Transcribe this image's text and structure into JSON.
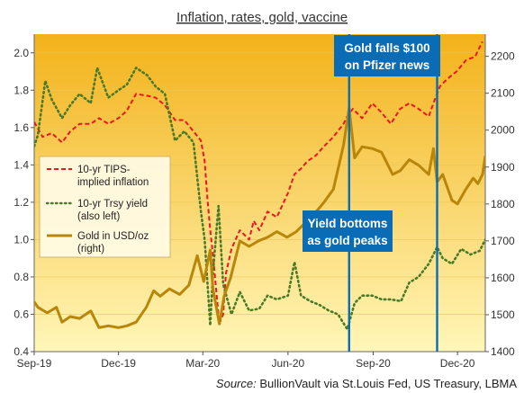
{
  "chart_data": {
    "type": "line",
    "title": "Inflation,  rates, gold, vaccine",
    "source_prefix": "Source:",
    "source_text": " BullionVault via  St.Louis Fed,  US Treasury,  LBMA",
    "x_tick_labels": [
      "Sep-19",
      "Dec-19",
      "Mar-20",
      "Jun-20",
      "Sep-20",
      "Dec-20"
    ],
    "x_tick_dates": [
      "2019-09-01",
      "2019-12-01",
      "2020-03-01",
      "2020-06-01",
      "2020-09-01",
      "2020-12-01"
    ],
    "xlim": [
      "2019-09-01",
      "2020-12-31"
    ],
    "ylim_left": [
      0.4,
      2.1
    ],
    "yticks_left": [
      "0.4",
      "0.6",
      "0.8",
      "1.0",
      "1.2",
      "1.4",
      "1.6",
      "1.8",
      "2.0"
    ],
    "ylim_right": [
      1400,
      2260
    ],
    "yticks_right": [
      "1400",
      "1500",
      "1600",
      "1700",
      "1800",
      "1900",
      "2000",
      "2100",
      "2200"
    ],
    "legend_position": "left-middle",
    "series": [
      {
        "name": "10-yr TIPS-implied inflation",
        "legend_lines": [
          "10-yr TIPS-",
          "implied inflation"
        ],
        "axis": "left",
        "style": "dashed",
        "color": "#e8181e",
        "points": [
          [
            "2019-09-01",
            1.63
          ],
          [
            "2019-09-10",
            1.55
          ],
          [
            "2019-09-20",
            1.57
          ],
          [
            "2019-10-01",
            1.52
          ],
          [
            "2019-10-10",
            1.58
          ],
          [
            "2019-10-20",
            1.62
          ],
          [
            "2019-11-01",
            1.62
          ],
          [
            "2019-11-10",
            1.65
          ],
          [
            "2019-11-20",
            1.62
          ],
          [
            "2019-12-01",
            1.65
          ],
          [
            "2019-12-10",
            1.69
          ],
          [
            "2019-12-20",
            1.78
          ],
          [
            "2020-01-01",
            1.77
          ],
          [
            "2020-01-10",
            1.76
          ],
          [
            "2020-01-20",
            1.72
          ],
          [
            "2020-01-31",
            1.64
          ],
          [
            "2020-02-10",
            1.64
          ],
          [
            "2020-02-20",
            1.58
          ],
          [
            "2020-02-28",
            1.53
          ],
          [
            "2020-03-03",
            1.42
          ],
          [
            "2020-03-06",
            1.22
          ],
          [
            "2020-03-09",
            1.05
          ],
          [
            "2020-03-12",
            0.92
          ],
          [
            "2020-03-16",
            0.7
          ],
          [
            "2020-03-19",
            0.55
          ],
          [
            "2020-03-23",
            0.6
          ],
          [
            "2020-03-26",
            0.82
          ],
          [
            "2020-04-01",
            0.95
          ],
          [
            "2020-04-10",
            1.05
          ],
          [
            "2020-04-20",
            1.0
          ],
          [
            "2020-04-25",
            1.1
          ],
          [
            "2020-05-01",
            1.05
          ],
          [
            "2020-05-10",
            1.15
          ],
          [
            "2020-05-20",
            1.12
          ],
          [
            "2020-06-01",
            1.25
          ],
          [
            "2020-06-08",
            1.35
          ],
          [
            "2020-06-15",
            1.38
          ],
          [
            "2020-06-22",
            1.42
          ],
          [
            "2020-07-01",
            1.45
          ],
          [
            "2020-07-10",
            1.5
          ],
          [
            "2020-07-20",
            1.55
          ],
          [
            "2020-07-31",
            1.62
          ],
          [
            "2020-08-05",
            1.67
          ],
          [
            "2020-08-10",
            1.7
          ],
          [
            "2020-08-20",
            1.65
          ],
          [
            "2020-08-31",
            1.73
          ],
          [
            "2020-09-10",
            1.68
          ],
          [
            "2020-09-20",
            1.62
          ],
          [
            "2020-09-30",
            1.7
          ],
          [
            "2020-10-10",
            1.73
          ],
          [
            "2020-10-20",
            1.7
          ],
          [
            "2020-10-31",
            1.66
          ],
          [
            "2020-11-05",
            1.73
          ],
          [
            "2020-11-12",
            1.82
          ],
          [
            "2020-11-20",
            1.86
          ],
          [
            "2020-11-30",
            1.9
          ],
          [
            "2020-12-10",
            1.96
          ],
          [
            "2020-12-20",
            1.98
          ],
          [
            "2020-12-28",
            2.06
          ]
        ]
      },
      {
        "name": "10-yr Trsy yield (also left)",
        "legend_lines": [
          "10-yr Trsy yield",
          "(also left)"
        ],
        "axis": "left",
        "style": "dotted",
        "color": "#4a7a28",
        "points": [
          [
            "2019-09-01",
            1.5
          ],
          [
            "2019-09-05",
            1.56
          ],
          [
            "2019-09-13",
            1.85
          ],
          [
            "2019-09-20",
            1.75
          ],
          [
            "2019-10-01",
            1.65
          ],
          [
            "2019-10-10",
            1.72
          ],
          [
            "2019-10-20",
            1.78
          ],
          [
            "2019-11-01",
            1.73
          ],
          [
            "2019-11-08",
            1.92
          ],
          [
            "2019-11-20",
            1.76
          ],
          [
            "2019-12-01",
            1.8
          ],
          [
            "2019-12-10",
            1.83
          ],
          [
            "2019-12-20",
            1.92
          ],
          [
            "2020-01-01",
            1.88
          ],
          [
            "2020-01-10",
            1.82
          ],
          [
            "2020-01-20",
            1.78
          ],
          [
            "2020-01-31",
            1.53
          ],
          [
            "2020-02-10",
            1.58
          ],
          [
            "2020-02-20",
            1.52
          ],
          [
            "2020-02-28",
            1.15
          ],
          [
            "2020-03-03",
            1.0
          ],
          [
            "2020-03-09",
            0.54
          ],
          [
            "2020-03-12",
            0.82
          ],
          [
            "2020-03-18",
            1.18
          ],
          [
            "2020-03-23",
            0.76
          ],
          [
            "2020-04-01",
            0.6
          ],
          [
            "2020-04-10",
            0.72
          ],
          [
            "2020-04-20",
            0.62
          ],
          [
            "2020-05-01",
            0.63
          ],
          [
            "2020-05-10",
            0.7
          ],
          [
            "2020-05-20",
            0.68
          ],
          [
            "2020-06-01",
            0.7
          ],
          [
            "2020-06-08",
            0.88
          ],
          [
            "2020-06-15",
            0.7
          ],
          [
            "2020-06-25",
            0.67
          ],
          [
            "2020-07-05",
            0.65
          ],
          [
            "2020-07-15",
            0.62
          ],
          [
            "2020-07-25",
            0.6
          ],
          [
            "2020-08-04",
            0.52
          ],
          [
            "2020-08-12",
            0.66
          ],
          [
            "2020-08-20",
            0.7
          ],
          [
            "2020-08-31",
            0.7
          ],
          [
            "2020-09-10",
            0.68
          ],
          [
            "2020-09-20",
            0.68
          ],
          [
            "2020-10-01",
            0.67
          ],
          [
            "2020-10-10",
            0.77
          ],
          [
            "2020-10-20",
            0.8
          ],
          [
            "2020-10-31",
            0.87
          ],
          [
            "2020-11-09",
            0.96
          ],
          [
            "2020-11-15",
            0.9
          ],
          [
            "2020-11-25",
            0.87
          ],
          [
            "2020-12-05",
            0.95
          ],
          [
            "2020-12-15",
            0.92
          ],
          [
            "2020-12-25",
            0.94
          ],
          [
            "2020-12-31",
            1.0
          ]
        ]
      },
      {
        "name": "Gold in USD/oz (right)",
        "legend_lines": [
          "Gold in USD/oz",
          "(right)"
        ],
        "axis": "right",
        "style": "solid",
        "color": "#b8860b",
        "points": [
          [
            "2019-09-01",
            1535
          ],
          [
            "2019-09-05",
            1520
          ],
          [
            "2019-09-15",
            1505
          ],
          [
            "2019-09-25",
            1520
          ],
          [
            "2019-10-01",
            1480
          ],
          [
            "2019-10-10",
            1495
          ],
          [
            "2019-10-20",
            1490
          ],
          [
            "2019-11-01",
            1510
          ],
          [
            "2019-11-10",
            1465
          ],
          [
            "2019-11-20",
            1470
          ],
          [
            "2019-12-01",
            1465
          ],
          [
            "2019-12-10",
            1470
          ],
          [
            "2019-12-20",
            1480
          ],
          [
            "2019-12-31",
            1520
          ],
          [
            "2020-01-08",
            1565
          ],
          [
            "2020-01-15",
            1550
          ],
          [
            "2020-01-25",
            1570
          ],
          [
            "2020-02-05",
            1555
          ],
          [
            "2020-02-15",
            1580
          ],
          [
            "2020-02-24",
            1660
          ],
          [
            "2020-03-02",
            1590
          ],
          [
            "2020-03-09",
            1675
          ],
          [
            "2020-03-12",
            1570
          ],
          [
            "2020-03-19",
            1475
          ],
          [
            "2020-03-24",
            1550
          ],
          [
            "2020-03-31",
            1600
          ],
          [
            "2020-04-10",
            1700
          ],
          [
            "2020-04-20",
            1685
          ],
          [
            "2020-04-30",
            1700
          ],
          [
            "2020-05-10",
            1710
          ],
          [
            "2020-05-20",
            1725
          ],
          [
            "2020-05-31",
            1710
          ],
          [
            "2020-06-10",
            1725
          ],
          [
            "2020-06-20",
            1750
          ],
          [
            "2020-06-30",
            1775
          ],
          [
            "2020-07-10",
            1805
          ],
          [
            "2020-07-20",
            1840
          ],
          [
            "2020-07-31",
            1960
          ],
          [
            "2020-08-06",
            2060
          ],
          [
            "2020-08-12",
            1925
          ],
          [
            "2020-08-20",
            1955
          ],
          [
            "2020-08-31",
            1950
          ],
          [
            "2020-09-10",
            1940
          ],
          [
            "2020-09-22",
            1880
          ],
          [
            "2020-09-30",
            1890
          ],
          [
            "2020-10-10",
            1920
          ],
          [
            "2020-10-20",
            1905
          ],
          [
            "2020-10-31",
            1880
          ],
          [
            "2020-11-05",
            1950
          ],
          [
            "2020-11-09",
            1860
          ],
          [
            "2020-11-15",
            1880
          ],
          [
            "2020-11-25",
            1810
          ],
          [
            "2020-12-01",
            1800
          ],
          [
            "2020-12-10",
            1840
          ],
          [
            "2020-12-18",
            1870
          ],
          [
            "2020-12-23",
            1855
          ],
          [
            "2020-12-28",
            1880
          ],
          [
            "2020-12-31",
            1930
          ]
        ]
      }
    ],
    "annotations": [
      {
        "id": "yield-bottom",
        "lines": [
          "Yield bottoms",
          "as gold peaks"
        ],
        "date": "2020-08-06"
      },
      {
        "id": "pfizer",
        "lines": [
          "Gold falls $100",
          "on Pfizer news"
        ],
        "date": "2020-11-09"
      }
    ]
  },
  "colors": {
    "plot_top": "#f3b21a",
    "plot_bottom": "#fff6b8",
    "annotation_box": "#0a6cb4",
    "annotation_line": "#0a6cb4",
    "grid": "#e8c65a"
  }
}
